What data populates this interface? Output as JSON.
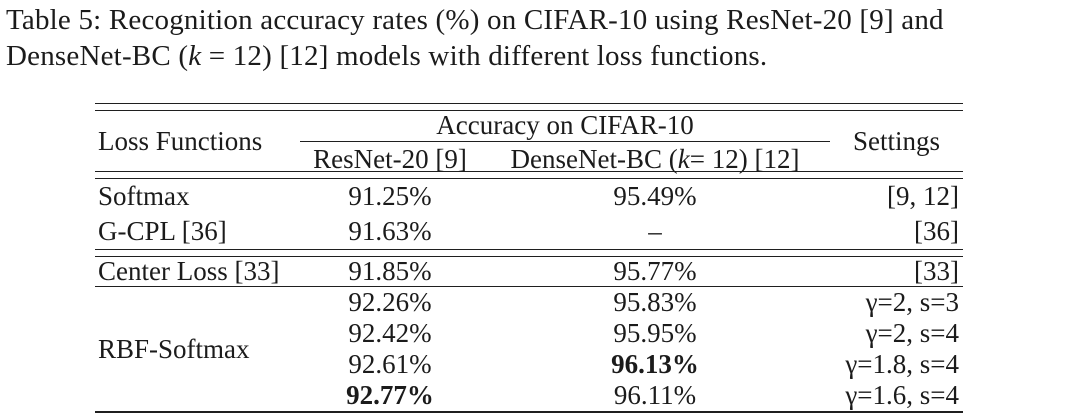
{
  "caption": {
    "line1": "Table 5: Recognition accuracy rates (%) on CIFAR-10 using ResNet-20 [9] and",
    "line2_prefix": "DenseNet-BC (",
    "line2_var": "k",
    "line2_suffix": " = 12) [12] models with different loss functions."
  },
  "table": {
    "headers": {
      "loss_functions": "Loss Functions",
      "accuracy_group": "Accuracy on CIFAR-10",
      "resnet": "ResNet-20 [9]",
      "densenet_prefix": "DenseNet-BC (",
      "densenet_var": "k",
      "densenet_suffix": " = 12) [12]",
      "settings": "Settings"
    },
    "rows": [
      {
        "loss": "Softmax",
        "resnet": "91.25%",
        "densenet": "95.49%",
        "settings": "[9, 12]"
      },
      {
        "loss": "G-CPL [36]",
        "resnet": "91.63%",
        "densenet": "–",
        "settings": "[36]"
      },
      {
        "loss": "Center Loss [33]",
        "resnet": "91.85%",
        "densenet": "95.77%",
        "settings": "[33]"
      },
      {
        "loss": "RBF-Softmax",
        "resnet": "92.26%",
        "densenet": "95.83%",
        "settings": "γ=2, s=3"
      },
      {
        "resnet": "92.42%",
        "densenet": "95.95%",
        "settings": "γ=2, s=4"
      },
      {
        "resnet": "92.61%",
        "densenet": "96.13%",
        "densenet_bold": true,
        "settings": "γ=1.8, s=4"
      },
      {
        "resnet": "92.77%",
        "resnet_bold": true,
        "densenet": "96.11%",
        "settings": "γ=1.6, s=4"
      }
    ],
    "colors": {
      "text": "#1a1a1a",
      "rule": "#1f1f1f",
      "background": "#ffffff"
    }
  },
  "chart_data": {
    "type": "table",
    "title": "Table 5: Recognition accuracy rates (%) on CIFAR-10 using ResNet-20 [9] and DenseNet-BC (k = 12) [12] models with different loss functions.",
    "columns": [
      "Loss Functions",
      "ResNet-20 [9] accuracy",
      "DenseNet-BC (k = 12) [12] accuracy",
      "Settings"
    ],
    "rows": [
      [
        "Softmax",
        "91.25%",
        "95.49%",
        "[9, 12]"
      ],
      [
        "G-CPL [36]",
        "91.63%",
        "–",
        "[36]"
      ],
      [
        "Center Loss [33]",
        "91.85%",
        "95.77%",
        "[33]"
      ],
      [
        "RBF-Softmax",
        "92.26%",
        "95.83%",
        "γ=2, s=3"
      ],
      [
        "RBF-Softmax",
        "92.42%",
        "95.95%",
        "γ=2, s=4"
      ],
      [
        "RBF-Softmax",
        "92.61%",
        "96.13%",
        "γ=1.8, s=4"
      ],
      [
        "RBF-Softmax",
        "92.77%",
        "96.11%",
        "γ=1.6, s=4"
      ]
    ],
    "bold_cells": [
      {
        "row": 6,
        "column": "DenseNet-BC (k = 12) [12] accuracy",
        "value": "96.13%"
      },
      {
        "row": 7,
        "column": "ResNet-20 [9] accuracy",
        "value": "92.77%"
      }
    ],
    "layout": {
      "rules": [
        "double top rule",
        "cmidrule under group header",
        "double rule under header",
        "double rule after G-CPL row",
        "single rule after Center Loss row",
        "single bottom rule"
      ],
      "grid": "off"
    }
  }
}
